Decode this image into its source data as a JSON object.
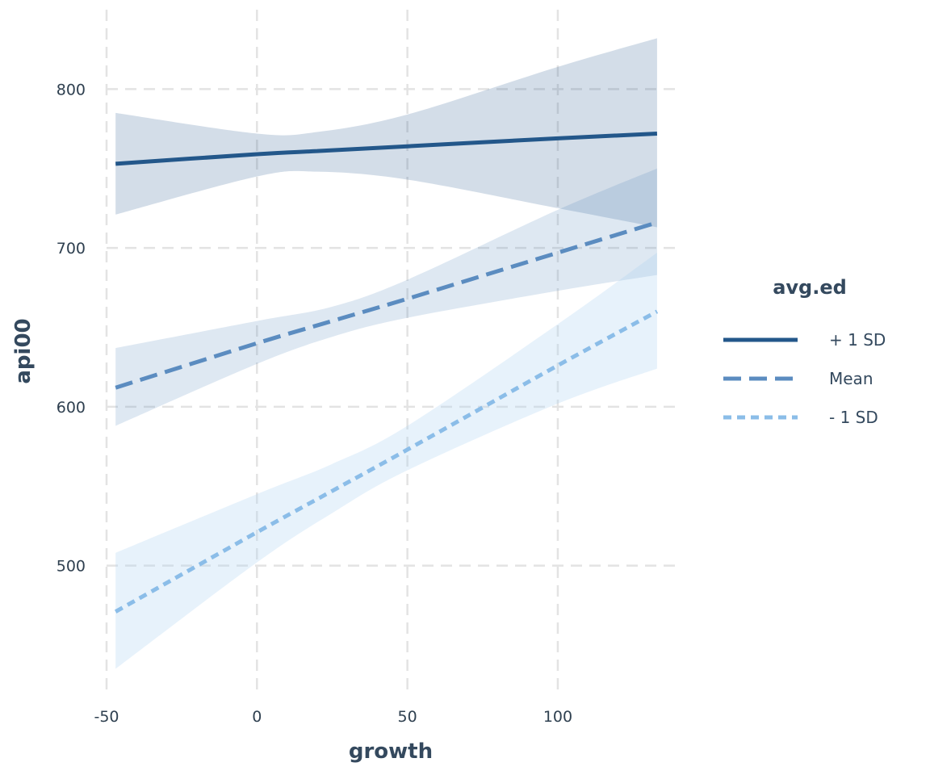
{
  "chart_data": {
    "type": "line",
    "xlabel": "growth",
    "ylabel": "api00",
    "xlim": [
      -50,
      140
    ],
    "ylim": [
      420,
      850
    ],
    "x_ticks": [
      "-50",
      "0",
      "50",
      "100"
    ],
    "x_tick_values": [
      -50,
      0,
      50,
      100
    ],
    "y_ticks": [
      "500",
      "600",
      "700",
      "800"
    ],
    "y_tick_values": [
      500,
      600,
      700,
      800
    ],
    "grid": true,
    "legend": {
      "title": "avg.ed",
      "placement": "right"
    },
    "series": [
      {
        "name": "+ 1 SD",
        "color": "#23578a",
        "dash": "solid",
        "band_color": "#23578a",
        "x": [
          -47,
          0,
          20,
          50,
          100,
          133
        ],
        "y": [
          753,
          759,
          761,
          764,
          769,
          772
        ],
        "lower": [
          721,
          745,
          748,
          743,
          725,
          713
        ],
        "upper": [
          785,
          772,
          773,
          784,
          814,
          832
        ]
      },
      {
        "name": "Mean",
        "color": "#5b8cc0",
        "dash": "dashed",
        "band_color": "#5b8cc0",
        "x": [
          -47,
          0,
          25,
          50,
          100,
          133
        ],
        "y": [
          612,
          640,
          654,
          668,
          697,
          716
        ],
        "lower": [
          588,
          627,
          644,
          656,
          673,
          683
        ],
        "upper": [
          637,
          654,
          663,
          680,
          724,
          750
        ]
      },
      {
        "name": "- 1 SD",
        "color": "#8bbde8",
        "dash": "dotted",
        "band_color": "#a9d0f2",
        "x": [
          -47,
          0,
          25,
          50,
          100,
          133
        ],
        "y": [
          471,
          521,
          547,
          573,
          626,
          660
        ],
        "lower": [
          435,
          502,
          533,
          560,
          602,
          624
        ],
        "upper": [
          508,
          545,
          564,
          588,
          652,
          697
        ]
      }
    ]
  }
}
